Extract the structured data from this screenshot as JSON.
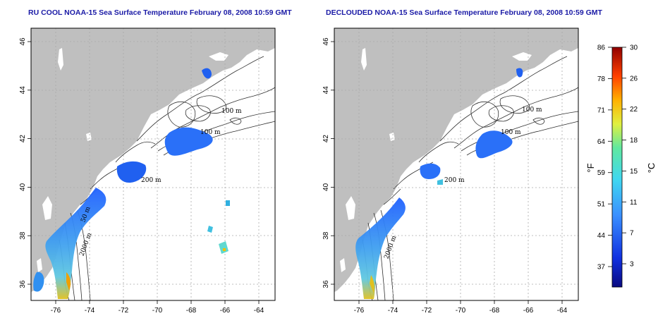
{
  "titles": {
    "left": "RU COOL NOAA-15 Sea Surface Temperature February 08, 2008 10:59 GMT",
    "right": "DECLOUDED NOAA-15 Sea Surface Temperature February 08, 2008 10:59 GMT"
  },
  "axes": {
    "x_ticks": [
      "-76",
      "-74",
      "-72",
      "-70",
      "-68",
      "-66",
      "-64"
    ],
    "y_ticks": [
      "36",
      "38",
      "40",
      "42",
      "44",
      "46"
    ]
  },
  "contour_labels": {
    "left": [
      "100 m",
      "100 m",
      "200 m",
      "50 m",
      "2000 m"
    ],
    "right": [
      "100 m",
      "100 m",
      "200 m",
      "2000 m"
    ]
  },
  "colorbar": {
    "f_ticks": [
      "86",
      "78",
      "71",
      "64",
      "59",
      "51",
      "44",
      "37"
    ],
    "c_ticks": [
      "30",
      "26",
      "22",
      "18",
      "15",
      "11",
      "7",
      "3"
    ],
    "f_unit": "°F",
    "c_unit": "°C"
  },
  "colors": {
    "land": "#bfbfbf",
    "ocean": "#ffffff",
    "title": "#1a1aa6",
    "grid": "#aaaaaa"
  }
}
